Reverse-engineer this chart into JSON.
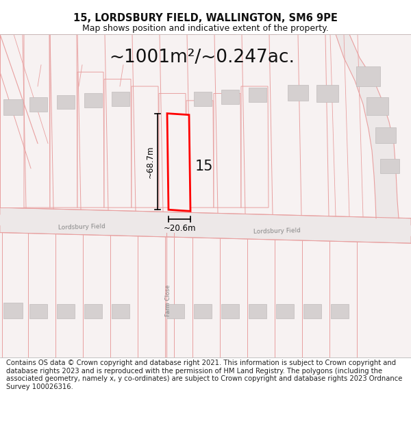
{
  "title_line1": "15, LORDSBURY FIELD, WALLINGTON, SM6 9PE",
  "title_line2": "Map shows position and indicative extent of the property.",
  "area_text": "~1001m²/~0.247ac.",
  "dim_height": "~68.7m",
  "dim_width": "~20.6m",
  "number_label": "15",
  "street_label_left": "Lordsbury Field",
  "street_label_right": "Lordsbury Field",
  "street_label_farm": "Farm Close",
  "disclaimer": "Contains OS data © Crown copyright and database right 2021. This information is subject to Crown copyright and database rights 2023 and is reproduced with the permission of HM Land Registry. The polygons (including the associated geometry, namely x, y co-ordinates) are subject to Crown copyright and database rights 2023 Ordnance Survey 100026316.",
  "bg_color": "#ffffff",
  "map_bg": "#f7f2f2",
  "line_color": "#e8a0a0",
  "building_color": "#d5d0d0",
  "building_ec": "#c0bcbc",
  "property_color": "#ff0000",
  "road_fill": "#ede8e8"
}
